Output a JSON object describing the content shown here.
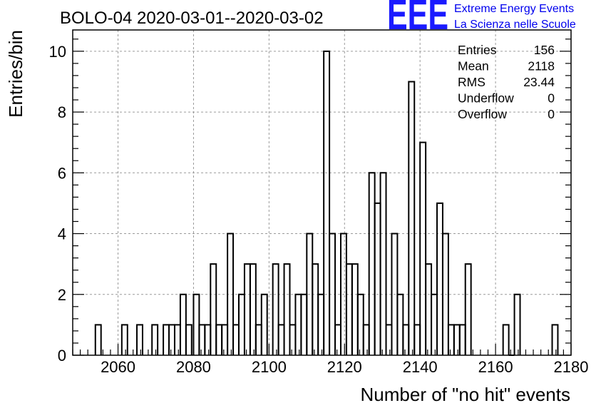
{
  "chart_data": {
    "type": "bar",
    "style": "step-histogram",
    "title": "BOLO-04 2020-03-01--2020-03-02",
    "xlabel": "Number of \"no hit\" events",
    "ylabel": "Entries/bin",
    "xlim": [
      2048,
      2180
    ],
    "ylim": [
      0,
      10.7
    ],
    "bin_width": 1.5,
    "x_ticks": [
      2060,
      2080,
      2100,
      2120,
      2140,
      2160,
      2180
    ],
    "y_ticks": [
      0,
      2,
      4,
      6,
      8,
      10
    ],
    "grid": true,
    "bin_start": [
      2054,
      2061,
      2065,
      2069,
      2072,
      2073.5,
      2075,
      2076.5,
      2078,
      2080,
      2081.5,
      2083,
      2084.5,
      2086,
      2087.5,
      2089,
      2090.5,
      2092,
      2093.5,
      2095,
      2096.5,
      2098,
      2101,
      2102.5,
      2104,
      2105.5,
      2107,
      2108.5,
      2110,
      2111.5,
      2113,
      2114.5,
      2116,
      2117.5,
      2119,
      2120.5,
      2122,
      2123.5,
      2125,
      2126.5,
      2128,
      2129.5,
      2131,
      2132.5,
      2134,
      2135.5,
      2137,
      2138.5,
      2140,
      2141.5,
      2143,
      2144.5,
      2146,
      2147.5,
      2149,
      2150.5,
      2152,
      2162,
      2163.5,
      2165,
      2175
    ],
    "values": [
      1,
      1,
      1,
      1,
      1,
      1,
      1,
      2,
      1,
      2,
      1,
      1,
      3,
      1,
      1,
      4,
      1,
      2,
      3,
      3,
      1,
      2,
      3,
      1,
      3,
      1,
      2,
      2,
      4,
      3,
      2,
      10,
      4,
      1,
      4,
      3,
      3,
      2,
      1,
      6,
      5,
      6,
      1,
      4,
      2,
      1,
      9,
      1,
      7,
      3,
      2,
      5,
      4,
      1,
      1,
      1,
      3,
      1,
      0,
      2,
      1
    ],
    "series": [
      {
        "name": "",
        "color": "#000000"
      }
    ],
    "legend": "none"
  },
  "stats": {
    "rows": [
      {
        "label": "Entries",
        "value": "156"
      },
      {
        "label": "Mean",
        "value": "2118"
      },
      {
        "label": "RMS",
        "value": "23.44"
      },
      {
        "label": "Underflow",
        "value": "0"
      },
      {
        "label": "Overflow",
        "value": "0"
      }
    ],
    "placement": "top-right"
  },
  "logo": {
    "mark": "EEE",
    "line1": "Extreme Energy Events",
    "line2": "La Scienza nelle Scuole",
    "color": "#0000ee"
  }
}
